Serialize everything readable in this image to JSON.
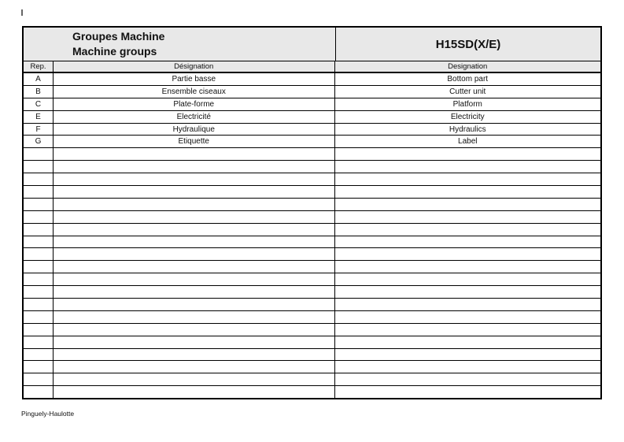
{
  "page": {
    "footer": "Pinguely-Haulotte"
  },
  "header": {
    "title_fr": "Groupes Machine",
    "title_en": "Machine groups",
    "model": "H15SD(X/E)"
  },
  "table": {
    "columns": [
      {
        "key": "rep",
        "label": "Rep."
      },
      {
        "key": "designation_fr",
        "label": "Désignation"
      },
      {
        "key": "designation_en",
        "label": "Designation"
      }
    ],
    "rows": [
      {
        "rep": "A",
        "designation_fr": "Partie basse",
        "designation_en": "Bottom part"
      },
      {
        "rep": "B",
        "designation_fr": "Ensemble ciseaux",
        "designation_en": "Cutter unit"
      },
      {
        "rep": "C",
        "designation_fr": "Plate-forme",
        "designation_en": "Platform"
      },
      {
        "rep": "E",
        "designation_fr": "Electricité",
        "designation_en": "Electricity"
      },
      {
        "rep": "F",
        "designation_fr": "Hydraulique",
        "designation_en": "Hydraulics"
      },
      {
        "rep": "G",
        "designation_fr": "Etiquette",
        "designation_en": "Label"
      }
    ],
    "empty_row_count": 20
  },
  "colors": {
    "band_gray": "#e8e8e8",
    "border_black": "#000000",
    "text": "#111111"
  }
}
